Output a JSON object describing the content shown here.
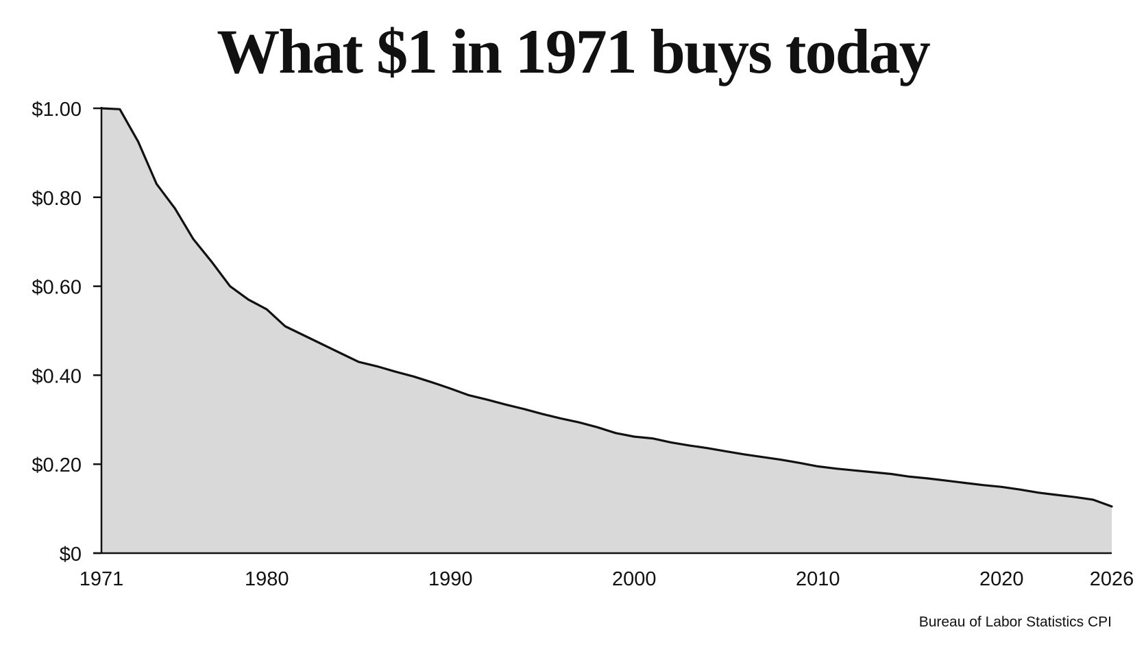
{
  "chart_data": {
    "type": "area",
    "title": "What $1 in 1971 buys today",
    "xlabel": "",
    "ylabel": "",
    "source": "Bureau of Labor Statistics CPI",
    "x_ticks": [
      {
        "value": 1971,
        "label": "1971"
      },
      {
        "value": 1980,
        "label": "1980"
      },
      {
        "value": 1990,
        "label": "1990"
      },
      {
        "value": 2000,
        "label": "2000"
      },
      {
        "value": 2010,
        "label": "2010"
      },
      {
        "value": 2020,
        "label": "2020"
      },
      {
        "value": 2026,
        "label": "2026"
      }
    ],
    "y_ticks": [
      {
        "value": 0,
        "label": "$0"
      },
      {
        "value": 0.2,
        "label": "$0.20"
      },
      {
        "value": 0.4,
        "label": "$0.40"
      },
      {
        "value": 0.6,
        "label": "$0.60"
      },
      {
        "value": 0.8,
        "label": "$0.80"
      },
      {
        "value": 1.0,
        "label": "$1.00"
      }
    ],
    "xlim": [
      1971,
      2028
    ],
    "ylim": [
      0,
      1.0
    ],
    "grid": false,
    "legend": "none",
    "colors": {
      "line": "#111111",
      "fill": "#d9d9d9",
      "axis": "#111111"
    },
    "series": [
      {
        "x": [
          1971,
          1972,
          1973,
          1974,
          1975,
          1976,
          1977,
          1978,
          1979,
          1980,
          1981,
          1982,
          1983,
          1984,
          1985,
          1986,
          1987,
          1988,
          1989,
          1990,
          1991,
          1992,
          1993,
          1994,
          1995,
          1996,
          1997,
          1998,
          1999,
          2000,
          2001,
          2002,
          2003,
          2004,
          2005,
          2006,
          2007,
          2008,
          2009,
          2010,
          2011,
          2012,
          2013,
          2014,
          2015,
          2016,
          2017,
          2018,
          2019,
          2020,
          2021,
          2022,
          2023,
          2024,
          2025,
          2026
        ],
        "values": [
          1.0,
          0.998,
          0.925,
          0.83,
          0.775,
          0.706,
          0.655,
          0.6,
          0.57,
          0.548,
          0.51,
          0.49,
          0.47,
          0.45,
          0.43,
          0.42,
          0.408,
          0.397,
          0.384,
          0.37,
          0.355,
          0.345,
          0.334,
          0.324,
          0.313,
          0.303,
          0.294,
          0.283,
          0.27,
          0.262,
          0.258,
          0.249,
          0.242,
          0.236,
          0.229,
          0.222,
          0.216,
          0.21,
          0.203,
          0.195,
          0.19,
          0.186,
          0.182,
          0.178,
          0.172,
          0.168,
          0.163,
          0.158,
          0.153,
          0.149,
          0.143,
          0.136,
          0.131,
          0.126,
          0.12,
          0.105
        ]
      }
    ]
  }
}
